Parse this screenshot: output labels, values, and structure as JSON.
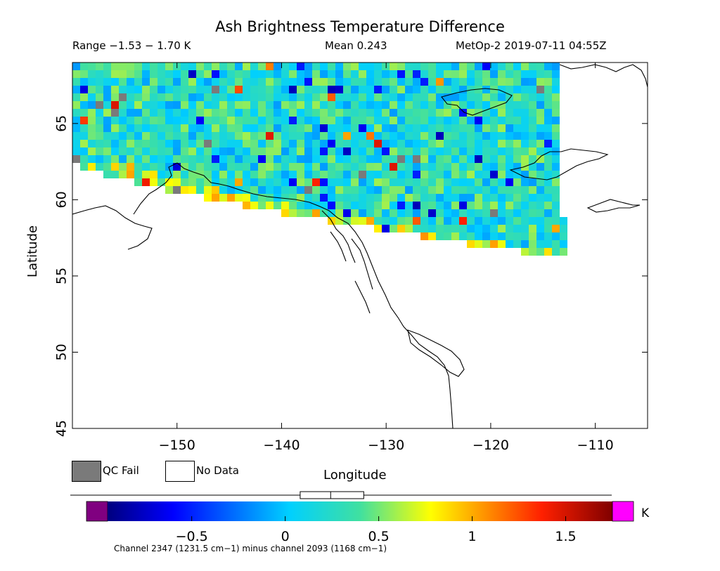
{
  "title": "Ash Brightness Temperature Difference",
  "header": {
    "range": "Range −1.53 − 1.70 K",
    "mean": "Mean 0.243",
    "satellite": "MetOp-2 2019-07-11 04:55Z"
  },
  "axes": {
    "xlabel": "Longitude",
    "ylabel": "Latitude",
    "x_range": [
      -160,
      -105
    ],
    "y_range": [
      45,
      69
    ],
    "x_ticks": [
      {
        "value": -150,
        "label": "−150"
      },
      {
        "value": -140,
        "label": "−140"
      },
      {
        "value": -130,
        "label": "−130"
      },
      {
        "value": -120,
        "label": "−120"
      },
      {
        "value": -110,
        "label": "−110"
      }
    ],
    "y_ticks": [
      {
        "value": 45,
        "label": "45"
      },
      {
        "value": 50,
        "label": "50"
      },
      {
        "value": 55,
        "label": "55"
      },
      {
        "value": 60,
        "label": "60"
      },
      {
        "value": 65,
        "label": "65"
      }
    ]
  },
  "legend": {
    "qc_fail": "QC Fail",
    "no_data": "No Data",
    "qc_color": "#7a7a7a",
    "no_data_color": "#ffffff"
  },
  "colorbar": {
    "unit": "K",
    "range": [
      -0.95,
      1.75
    ],
    "ticks": [
      {
        "value": -0.5,
        "label": "−0.5"
      },
      {
        "value": 0,
        "label": "0"
      },
      {
        "value": 0.5,
        "label": "0.5"
      },
      {
        "value": 1,
        "label": "1"
      },
      {
        "value": 1.5,
        "label": "1.5"
      }
    ],
    "underflow_color": "#800080",
    "overflow_color": "#ff00ff",
    "boxplot": {
      "min": -1.53,
      "q1": 0.08,
      "median": 0.243,
      "q3": 0.42,
      "max": 1.7
    }
  },
  "footnote": "Channel 2347 (1231.5 cm−1) minus channel 2093 (1168 cm−1)"
}
